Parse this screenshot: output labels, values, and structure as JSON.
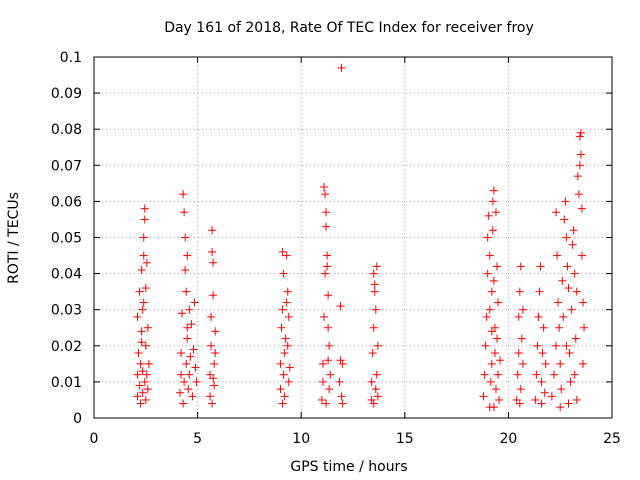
{
  "chart_data": {
    "type": "scatter",
    "title": "Day 161 of 2018, Rate Of TEC Index for receiver froy",
    "xlabel": "GPS time / hours",
    "ylabel": "ROTI / TECUs",
    "xlim": [
      0,
      25
    ],
    "ylim": [
      0,
      0.1
    ],
    "xticks": [
      0,
      5,
      10,
      15,
      20,
      25
    ],
    "yticks": [
      0,
      0.01,
      0.02,
      0.03,
      0.04,
      0.05,
      0.06,
      0.07,
      0.08,
      0.09,
      0.1
    ],
    "xtick_labels": [
      "0",
      "5",
      "10",
      "15",
      "20",
      "25"
    ],
    "ytick_labels": [
      "0",
      "0.01",
      "0.02",
      "0.03",
      "0.04",
      "0.05",
      "0.06",
      "0.07",
      "0.08",
      "0.09",
      "0.1"
    ],
    "grid": true,
    "marker": "+",
    "color": "#ff0000",
    "series": [
      {
        "name": "ROTI",
        "points": [
          [
            2.1,
            0.006
          ],
          [
            2.1,
            0.012
          ],
          [
            2.15,
            0.018
          ],
          [
            2.1,
            0.028
          ],
          [
            2.2,
            0.035
          ],
          [
            2.2,
            0.009
          ],
          [
            2.25,
            0.015
          ],
          [
            2.3,
            0.021
          ],
          [
            2.3,
            0.041
          ],
          [
            2.35,
            0.007
          ],
          [
            2.35,
            0.013
          ],
          [
            2.35,
            0.03
          ],
          [
            2.4,
            0.045
          ],
          [
            2.4,
            0.05
          ],
          [
            2.45,
            0.058
          ],
          [
            2.45,
            0.055
          ],
          [
            2.45,
            0.01
          ],
          [
            2.5,
            0.005
          ],
          [
            2.5,
            0.02
          ],
          [
            2.5,
            0.036
          ],
          [
            2.55,
            0.043
          ],
          [
            2.55,
            0.012
          ],
          [
            2.6,
            0.008
          ],
          [
            2.6,
            0.025
          ],
          [
            2.65,
            0.015
          ],
          [
            2.25,
            0.004
          ],
          [
            2.4,
            0.032
          ],
          [
            2.3,
            0.024
          ],
          [
            4.15,
            0.007
          ],
          [
            4.2,
            0.012
          ],
          [
            4.2,
            0.018
          ],
          [
            4.25,
            0.029
          ],
          [
            4.3,
            0.062
          ],
          [
            4.35,
            0.057
          ],
          [
            4.35,
            0.01
          ],
          [
            4.4,
            0.05
          ],
          [
            4.4,
            0.041
          ],
          [
            4.45,
            0.035
          ],
          [
            4.45,
            0.015
          ],
          [
            4.5,
            0.045
          ],
          [
            4.5,
            0.022
          ],
          [
            4.55,
            0.008
          ],
          [
            4.6,
            0.03
          ],
          [
            4.6,
            0.012
          ],
          [
            4.7,
            0.026
          ],
          [
            4.75,
            0.006
          ],
          [
            4.8,
            0.019
          ],
          [
            4.85,
            0.032
          ],
          [
            4.9,
            0.014
          ],
          [
            4.95,
            0.01
          ],
          [
            4.3,
            0.004
          ],
          [
            4.5,
            0.025
          ],
          [
            4.65,
            0.017
          ],
          [
            5.6,
            0.006
          ],
          [
            5.6,
            0.012
          ],
          [
            5.65,
            0.02
          ],
          [
            5.65,
            0.028
          ],
          [
            5.7,
            0.052
          ],
          [
            5.7,
            0.046
          ],
          [
            5.75,
            0.043
          ],
          [
            5.75,
            0.034
          ],
          [
            5.8,
            0.015
          ],
          [
            5.8,
            0.009
          ],
          [
            5.85,
            0.024
          ],
          [
            5.85,
            0.018
          ],
          [
            5.7,
            0.004
          ],
          [
            5.75,
            0.011
          ],
          [
            9.0,
            0.008
          ],
          [
            9.0,
            0.015
          ],
          [
            9.05,
            0.025
          ],
          [
            9.1,
            0.03
          ],
          [
            9.1,
            0.046
          ],
          [
            9.15,
            0.04
          ],
          [
            9.15,
            0.012
          ],
          [
            9.2,
            0.006
          ],
          [
            9.2,
            0.018
          ],
          [
            9.3,
            0.045
          ],
          [
            9.3,
            0.032
          ],
          [
            9.35,
            0.02
          ],
          [
            9.35,
            0.035
          ],
          [
            9.4,
            0.01
          ],
          [
            9.4,
            0.028
          ],
          [
            9.45,
            0.014
          ],
          [
            9.1,
            0.004
          ],
          [
            9.25,
            0.022
          ],
          [
            11.0,
            0.005
          ],
          [
            11.05,
            0.01
          ],
          [
            11.05,
            0.015
          ],
          [
            11.1,
            0.028
          ],
          [
            11.1,
            0.064
          ],
          [
            11.15,
            0.062
          ],
          [
            11.15,
            0.04
          ],
          [
            11.2,
            0.057
          ],
          [
            11.2,
            0.053
          ],
          [
            11.25,
            0.045
          ],
          [
            11.25,
            0.042
          ],
          [
            11.3,
            0.034
          ],
          [
            11.3,
            0.025
          ],
          [
            11.35,
            0.02
          ],
          [
            11.35,
            0.008
          ],
          [
            11.4,
            0.012
          ],
          [
            11.2,
            0.004
          ],
          [
            11.3,
            0.016
          ],
          [
            11.85,
            0.01
          ],
          [
            11.9,
            0.016
          ],
          [
            11.9,
            0.031
          ],
          [
            11.95,
            0.097
          ],
          [
            11.95,
            0.006
          ],
          [
            12.0,
            0.004
          ],
          [
            12.0,
            0.015
          ],
          [
            13.4,
            0.005
          ],
          [
            13.4,
            0.01
          ],
          [
            13.45,
            0.018
          ],
          [
            13.5,
            0.025
          ],
          [
            13.5,
            0.04
          ],
          [
            13.55,
            0.035
          ],
          [
            13.55,
            0.037
          ],
          [
            13.6,
            0.03
          ],
          [
            13.6,
            0.008
          ],
          [
            13.65,
            0.042
          ],
          [
            13.65,
            0.012
          ],
          [
            13.7,
            0.006
          ],
          [
            13.7,
            0.02
          ],
          [
            13.5,
            0.004
          ],
          [
            18.8,
            0.006
          ],
          [
            18.85,
            0.012
          ],
          [
            18.9,
            0.02
          ],
          [
            18.95,
            0.028
          ],
          [
            19.0,
            0.04
          ],
          [
            19.0,
            0.05
          ],
          [
            19.05,
            0.056
          ],
          [
            19.1,
            0.045
          ],
          [
            19.1,
            0.03
          ],
          [
            19.15,
            0.01
          ],
          [
            19.2,
            0.015
          ],
          [
            19.2,
            0.035
          ],
          [
            19.25,
            0.06
          ],
          [
            19.25,
            0.052
          ],
          [
            19.3,
            0.063
          ],
          [
            19.3,
            0.038
          ],
          [
            19.35,
            0.025
          ],
          [
            19.35,
            0.018
          ],
          [
            19.4,
            0.008
          ],
          [
            19.4,
            0.057
          ],
          [
            19.45,
            0.042
          ],
          [
            19.45,
            0.022
          ],
          [
            19.5,
            0.032
          ],
          [
            19.5,
            0.012
          ],
          [
            19.55,
            0.005
          ],
          [
            19.6,
            0.016
          ],
          [
            19.1,
            0.003
          ],
          [
            19.3,
            0.003
          ],
          [
            19.2,
            0.024
          ],
          [
            20.4,
            0.005
          ],
          [
            20.45,
            0.012
          ],
          [
            20.5,
            0.018
          ],
          [
            20.5,
            0.028
          ],
          [
            20.55,
            0.035
          ],
          [
            20.6,
            0.042
          ],
          [
            20.6,
            0.008
          ],
          [
            20.65,
            0.022
          ],
          [
            20.7,
            0.015
          ],
          [
            20.7,
            0.03
          ],
          [
            20.55,
            0.004
          ],
          [
            21.3,
            0.005
          ],
          [
            21.35,
            0.012
          ],
          [
            21.4,
            0.02
          ],
          [
            21.45,
            0.028
          ],
          [
            21.5,
            0.035
          ],
          [
            21.55,
            0.042
          ],
          [
            21.6,
            0.01
          ],
          [
            21.65,
            0.018
          ],
          [
            21.7,
            0.025
          ],
          [
            21.75,
            0.007
          ],
          [
            21.8,
            0.015
          ],
          [
            21.6,
            0.004
          ],
          [
            22.1,
            0.006
          ],
          [
            22.2,
            0.012
          ],
          [
            22.3,
            0.02
          ],
          [
            22.3,
            0.057
          ],
          [
            22.35,
            0.045
          ],
          [
            22.4,
            0.032
          ],
          [
            22.45,
            0.025
          ],
          [
            22.5,
            0.015
          ],
          [
            22.55,
            0.008
          ],
          [
            22.6,
            0.038
          ],
          [
            22.65,
            0.028
          ],
          [
            22.7,
            0.055
          ],
          [
            22.75,
            0.06
          ],
          [
            22.8,
            0.05
          ],
          [
            22.85,
            0.042
          ],
          [
            22.9,
            0.036
          ],
          [
            22.95,
            0.018
          ],
          [
            23.0,
            0.01
          ],
          [
            23.05,
            0.03
          ],
          [
            23.1,
            0.048
          ],
          [
            23.15,
            0.052
          ],
          [
            23.2,
            0.04
          ],
          [
            23.25,
            0.022
          ],
          [
            23.3,
            0.035
          ],
          [
            23.35,
            0.067
          ],
          [
            23.4,
            0.062
          ],
          [
            23.45,
            0.07
          ],
          [
            23.45,
            0.078
          ],
          [
            23.5,
            0.079
          ],
          [
            23.5,
            0.073
          ],
          [
            23.55,
            0.058
          ],
          [
            23.55,
            0.045
          ],
          [
            23.6,
            0.032
          ],
          [
            23.6,
            0.015
          ],
          [
            23.65,
            0.025
          ],
          [
            22.5,
            0.003
          ],
          [
            22.9,
            0.004
          ],
          [
            23.3,
            0.005
          ],
          [
            23.2,
            0.012
          ],
          [
            22.8,
            0.02
          ]
        ]
      }
    ]
  }
}
